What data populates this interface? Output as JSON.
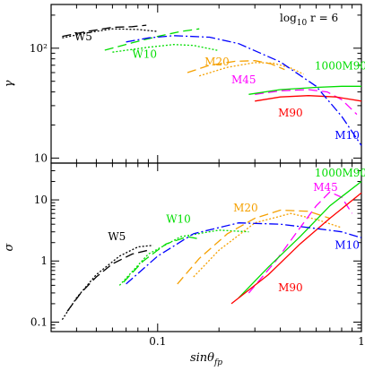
{
  "chart_data": [
    {
      "type": "line",
      "panel": "top",
      "ylabel": "γ",
      "annotation": "log",
      "annotation_sub": "10",
      "annotation_rest": "r = 6",
      "xscale": "log",
      "yscale": "log",
      "xlim": [
        0.03,
        1.0
      ],
      "ylim": [
        9.0,
        250
      ],
      "yticks": [
        {
          "v": 10,
          "label": "10"
        },
        {
          "v": 100,
          "label": "10²"
        }
      ],
      "grid": false,
      "series": [
        {
          "name": "W5",
          "color": "#000000",
          "dash": "10,5",
          "labelpos": [
            0.039,
            118
          ],
          "points": [
            [
              0.034,
              128
            ],
            [
              0.045,
              142
            ],
            [
              0.06,
              155
            ],
            [
              0.075,
              157
            ],
            [
              0.088,
              162
            ]
          ]
        },
        {
          "name": "W5",
          "color": "#000000",
          "dash": "2,2",
          "points": [
            [
              0.034,
              124
            ],
            [
              0.045,
              138
            ],
            [
              0.06,
              150
            ],
            [
              0.08,
              148
            ],
            [
              0.1,
              142
            ]
          ]
        },
        {
          "name": "W10",
          "color": "#00dd00",
          "dash": "10,5",
          "labelpos": [
            0.075,
            82
          ],
          "points": [
            [
              0.055,
              96
            ],
            [
              0.075,
              112
            ],
            [
              0.1,
              128
            ],
            [
              0.13,
              142
            ],
            [
              0.16,
              150
            ]
          ]
        },
        {
          "name": "W10",
          "color": "#00dd00",
          "dash": "2,2",
          "points": [
            [
              0.06,
              92
            ],
            [
              0.09,
              102
            ],
            [
              0.12,
              108
            ],
            [
              0.15,
              106
            ],
            [
              0.2,
              95
            ]
          ]
        },
        {
          "name": "M20",
          "color": "#f5a000",
          "dash": "10,5",
          "labelpos": [
            0.17,
            70
          ],
          "points": [
            [
              0.14,
              60
            ],
            [
              0.18,
              70
            ],
            [
              0.24,
              76
            ],
            [
              0.3,
              77
            ],
            [
              0.36,
              72
            ],
            [
              0.42,
              64
            ]
          ]
        },
        {
          "name": "M20",
          "color": "#f5a000",
          "dash": "2,2",
          "points": [
            [
              0.16,
              56
            ],
            [
              0.22,
              67
            ],
            [
              0.3,
              74
            ],
            [
              0.37,
              73
            ],
            [
              0.45,
              66
            ],
            [
              0.52,
              58
            ]
          ]
        },
        {
          "name": "M45",
          "color": "#ff00ff",
          "dash": "10,5",
          "labelpos": [
            0.23,
            48
          ],
          "points": [
            [
              0.3,
              38
            ],
            [
              0.4,
              41
            ],
            [
              0.55,
              42
            ],
            [
              0.68,
              40
            ],
            [
              0.8,
              34
            ],
            [
              0.95,
              25
            ]
          ]
        },
        {
          "name": "1000M90",
          "color": "#00dd00",
          "dash": "",
          "labelpos": [
            0.59,
            64
          ],
          "points": [
            [
              0.28,
              38
            ],
            [
              0.4,
              42
            ],
            [
              0.6,
              44
            ],
            [
              0.8,
              45
            ],
            [
              1.0,
              45
            ]
          ]
        },
        {
          "name": "M90",
          "color": "#ff0000",
          "dash": "",
          "labelpos": [
            0.39,
            24
          ],
          "points": [
            [
              0.3,
              33
            ],
            [
              0.4,
              36
            ],
            [
              0.55,
              37
            ],
            [
              0.75,
              36
            ],
            [
              1.0,
              33
            ]
          ]
        },
        {
          "name": "M10",
          "color": "#0000ff",
          "dash": "10,3,2,3",
          "labelpos": [
            0.74,
            15
          ],
          "points": [
            [
              0.07,
              114
            ],
            [
              0.09,
              124
            ],
            [
              0.12,
              130
            ],
            [
              0.18,
              126
            ],
            [
              0.25,
              110
            ],
            [
              0.4,
              75
            ],
            [
              0.6,
              45
            ],
            [
              0.8,
              24
            ],
            [
              1.0,
              13
            ]
          ]
        }
      ]
    },
    {
      "type": "line",
      "panel": "bottom",
      "ylabel": "σ",
      "xlabel": "sinθ",
      "xlabel_sub": "fp",
      "xscale": "log",
      "yscale": "log",
      "xlim": [
        0.03,
        1.0
      ],
      "ylim": [
        0.07,
        40
      ],
      "xticks": [
        {
          "v": 0.1,
          "label": "0.1"
        },
        {
          "v": 1,
          "label": "1"
        }
      ],
      "yticks": [
        {
          "v": 0.1,
          "label": "0.1"
        },
        {
          "v": 1,
          "label": "1"
        },
        {
          "v": 10,
          "label": "10"
        }
      ],
      "grid": false,
      "series": [
        {
          "name": "W5",
          "color": "#000000",
          "dash": "10,5",
          "labelpos": [
            0.057,
            2.2
          ],
          "points": [
            [
              0.036,
              0.15
            ],
            [
              0.042,
              0.3
            ],
            [
              0.05,
              0.55
            ],
            [
              0.06,
              0.9
            ],
            [
              0.075,
              1.3
            ],
            [
              0.09,
              1.5
            ]
          ]
        },
        {
          "name": "W5",
          "color": "#000000",
          "dash": "2,2",
          "points": [
            [
              0.034,
              0.11
            ],
            [
              0.04,
              0.25
            ],
            [
              0.05,
              0.6
            ],
            [
              0.065,
              1.2
            ],
            [
              0.08,
              1.7
            ],
            [
              0.095,
              1.8
            ]
          ]
        },
        {
          "name": "W10",
          "color": "#00dd00",
          "dash": "10,5",
          "labelpos": [
            0.11,
            4.2
          ],
          "points": [
            [
              0.068,
              0.45
            ],
            [
              0.085,
              1.0
            ],
            [
              0.11,
              1.9
            ],
            [
              0.14,
              2.5
            ],
            [
              0.16,
              2.3
            ]
          ]
        },
        {
          "name": "W10",
          "color": "#00dd00",
          "dash": "2,2",
          "points": [
            [
              0.065,
              0.4
            ],
            [
              0.09,
              1.3
            ],
            [
              0.13,
              2.5
            ],
            [
              0.2,
              3.2
            ],
            [
              0.28,
              3.0
            ]
          ]
        },
        {
          "name": "M20",
          "color": "#f5a000",
          "dash": "10,5",
          "labelpos": [
            0.235,
            6.5
          ],
          "points": [
            [
              0.125,
              0.42
            ],
            [
              0.16,
              1.1
            ],
            [
              0.22,
              2.8
            ],
            [
              0.3,
              5.0
            ],
            [
              0.4,
              6.8
            ],
            [
              0.55,
              6.5
            ],
            [
              0.7,
              5.0
            ]
          ]
        },
        {
          "name": "M20",
          "color": "#f5a000",
          "dash": "2,2",
          "points": [
            [
              0.15,
              0.55
            ],
            [
              0.2,
              1.5
            ],
            [
              0.3,
              4.2
            ],
            [
              0.45,
              6.0
            ],
            [
              0.6,
              4.8
            ],
            [
              0.8,
              3.5
            ]
          ]
        },
        {
          "name": "M45",
          "color": "#ff00ff",
          "dash": "10,5",
          "labelpos": [
            0.58,
            14
          ],
          "points": [
            [
              0.28,
              0.3
            ],
            [
              0.38,
              1.0
            ],
            [
              0.5,
              3.5
            ],
            [
              0.6,
              8.0
            ],
            [
              0.7,
              13.5
            ],
            [
              0.8,
              11.0
            ],
            [
              0.9,
              6.0
            ]
          ]
        },
        {
          "name": "1000M90",
          "color": "#00dd00",
          "dash": "",
          "labelpos": [
            0.59,
            24
          ],
          "points": [
            [
              0.25,
              0.25
            ],
            [
              0.35,
              0.8
            ],
            [
              0.5,
              2.5
            ],
            [
              0.7,
              8.0
            ],
            [
              1.0,
              20
            ]
          ]
        },
        {
          "name": "M90",
          "color": "#ff0000",
          "dash": "",
          "labelpos": [
            0.39,
            0.32
          ],
          "points": [
            [
              0.23,
              0.2
            ],
            [
              0.35,
              0.6
            ],
            [
              0.5,
              1.9
            ],
            [
              0.7,
              5.0
            ],
            [
              1.0,
              13.0
            ]
          ]
        },
        {
          "name": "M10",
          "color": "#0000ff",
          "dash": "10,3,2,3",
          "labelpos": [
            0.74,
            1.6
          ],
          "points": [
            [
              0.07,
              0.42
            ],
            [
              0.1,
              1.2
            ],
            [
              0.15,
              2.8
            ],
            [
              0.25,
              4.2
            ],
            [
              0.4,
              4.0
            ],
            [
              0.6,
              3.4
            ],
            [
              0.8,
              3.0
            ],
            [
              1.0,
              2.4
            ]
          ]
        }
      ]
    }
  ]
}
